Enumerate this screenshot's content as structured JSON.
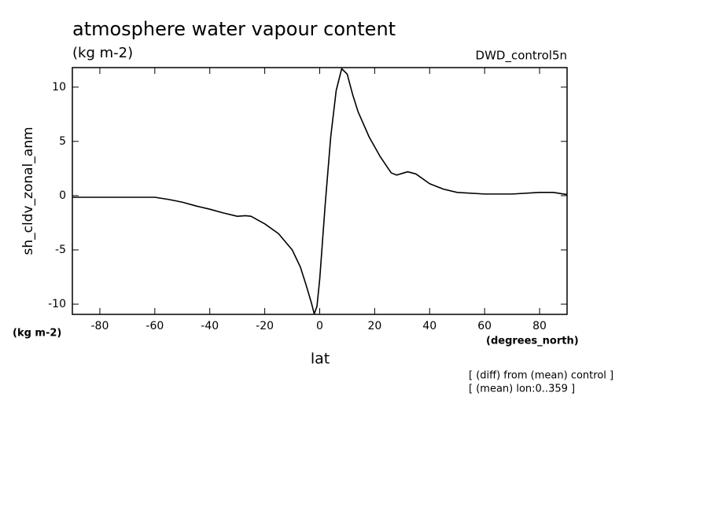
{
  "chart_data": {
    "type": "line",
    "title": "atmosphere water vapour content",
    "subtitle": "(kg m-2)",
    "experiment": "DWD_control5n",
    "ylabel": "sh_cldv_zonal_anm",
    "y_units": "(kg m-2)",
    "x_units": "(degrees_north)",
    "xlabel": "lat",
    "notes": [
      "[ (diff) from (mean) control ]",
      "[ (mean) lon:0..359 ]"
    ],
    "x": [
      -90,
      -60,
      -55,
      -50,
      -45,
      -40,
      -35,
      -30,
      -27,
      -25,
      -20,
      -15,
      -10,
      -7,
      -5,
      -3,
      -2,
      -1,
      0,
      2,
      4,
      6,
      8,
      10,
      12,
      14,
      18,
      22,
      26,
      28,
      32,
      35,
      40,
      45,
      50,
      60,
      70,
      80,
      85,
      90
    ],
    "series": [
      {
        "color": "#000000",
        "values": [
          -0.15,
          -0.15,
          -0.35,
          -0.6,
          -0.95,
          -1.25,
          -1.6,
          -1.9,
          -1.85,
          -1.9,
          -2.6,
          -3.5,
          -5,
          -6.6,
          -8.2,
          -9.9,
          -10.9,
          -10.2,
          -7.7,
          -0.8,
          5.4,
          9.7,
          11.7,
          11.2,
          9.3,
          7.7,
          5.4,
          3.6,
          2.1,
          1.9,
          2.2,
          2.0,
          1.1,
          0.6,
          0.3,
          0.15,
          0.15,
          0.3,
          0.3,
          0.1
        ]
      }
    ],
    "xlim": [
      -90,
      90
    ],
    "ylim": [
      -10.94,
      11.8
    ],
    "xticks": [
      -80,
      -60,
      -40,
      -20,
      0,
      20,
      40,
      60,
      80
    ],
    "yticks": [
      -10,
      -5,
      0,
      5,
      10
    ]
  }
}
